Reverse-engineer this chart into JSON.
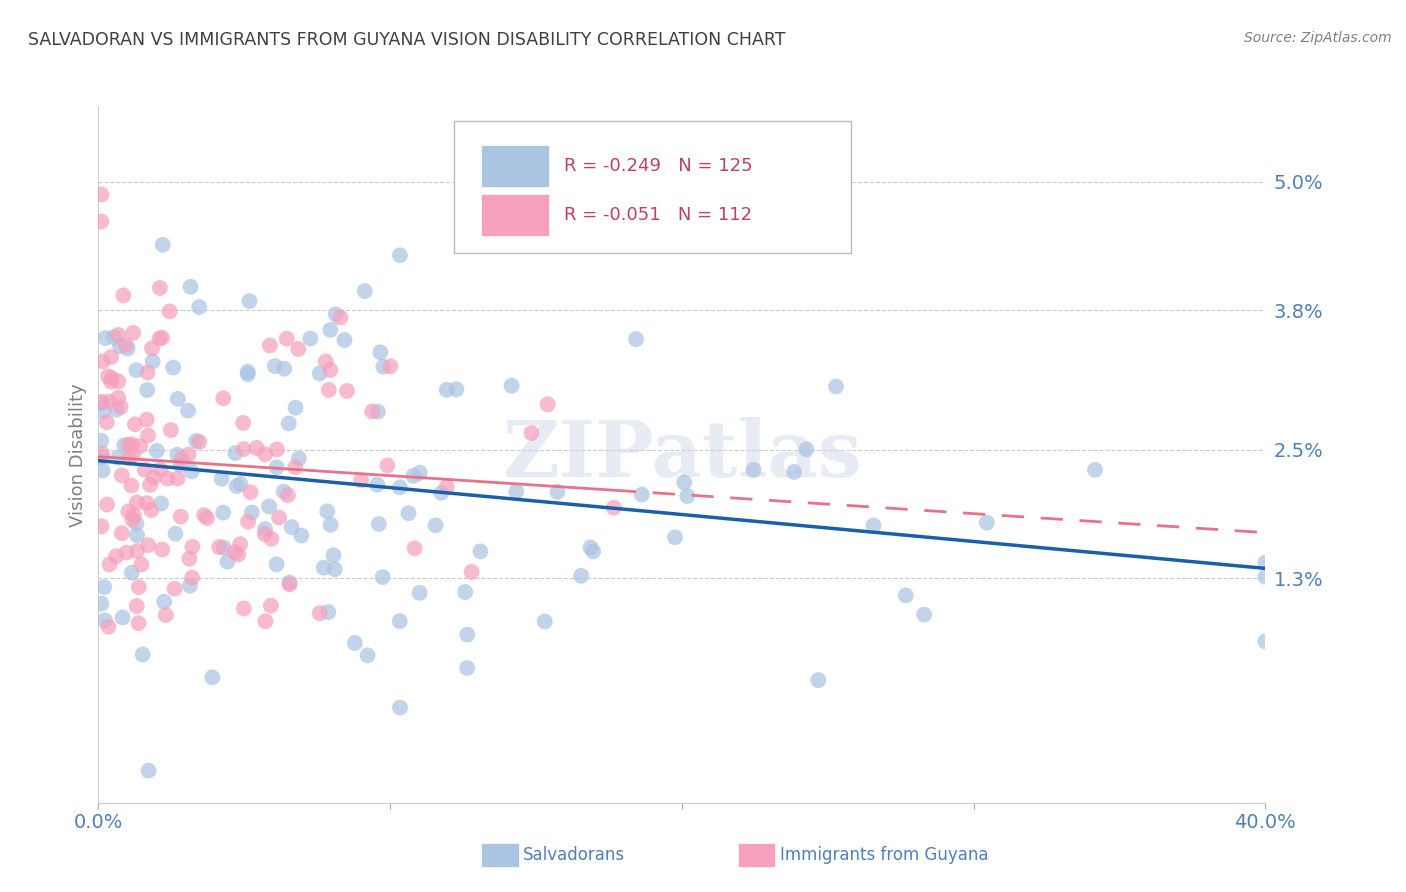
{
  "title": "SALVADORAN VS IMMIGRANTS FROM GUYANA VISION DISABILITY CORRELATION CHART",
  "source": "Source: ZipAtlas.com",
  "ylabel": "Vision Disability",
  "salvadoran_color": "#aac4e2",
  "guyana_color": "#f5a0bc",
  "trendline_salvadoran_color": "#1a5fa8",
  "trendline_guyana_color": "#e8728a",
  "watermark_text": "ZIPatlas",
  "background_color": "#ffffff",
  "grid_color": "#cccccc",
  "title_color": "#404040",
  "axis_tick_color": "#5080b8",
  "ylabel_color": "#808080",
  "xlim": [
    0.0,
    0.4
  ],
  "ylim": [
    -0.008,
    0.057
  ],
  "ytick_vals": [
    0.013,
    0.025,
    0.038,
    0.05
  ],
  "ytick_labels": [
    "1.3%",
    "2.5%",
    "3.8%",
    "5.0%"
  ],
  "xtick_vals": [
    0.0,
    0.1,
    0.2,
    0.3,
    0.4
  ],
  "xtick_labels": [
    "0.0%",
    "",
    "",
    "",
    "40.0%"
  ],
  "legend_R_sal": "R = -0.249",
  "legend_N_sal": "N = 125",
  "legend_R_guy": "R = -0.051",
  "legend_N_guy": "N = 112",
  "legend_label_sal": "Salvadorans",
  "legend_label_guy": "Immigrants from Guyana",
  "N_salvadoran": 125,
  "N_guyana": 112,
  "R_salvadoran": -0.249,
  "R_guyana": -0.051
}
